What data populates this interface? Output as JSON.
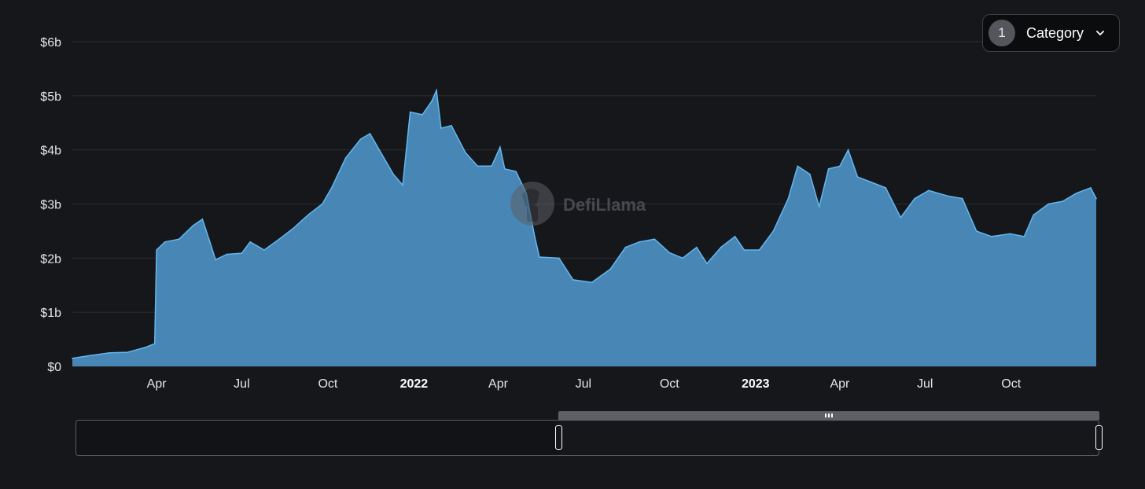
{
  "category_button": {
    "count": "1",
    "label": "Category"
  },
  "watermark": "DefiLlama",
  "colors": {
    "background": "#16171b",
    "area_fill": "#4b8cbe",
    "area_line": "#62b8f0",
    "grid": "#2a2c33"
  },
  "chart_data": {
    "type": "area",
    "title": "",
    "xlabel": "",
    "ylabel": "",
    "y_ticks": [
      "$0",
      "$1b",
      "$2b",
      "$3b",
      "$4b",
      "$5b",
      "$6b"
    ],
    "ylim": [
      0,
      6
    ],
    "y_unit": "billion USD",
    "x_range": [
      "2021-01-01",
      "2023-12-31"
    ],
    "x_ticks": [
      {
        "label": "Apr",
        "date": "2021-04-01",
        "bold": false
      },
      {
        "label": "Jul",
        "date": "2021-07-01",
        "bold": false
      },
      {
        "label": "Oct",
        "date": "2021-10-01",
        "bold": false
      },
      {
        "label": "2022",
        "date": "2022-01-01",
        "bold": true
      },
      {
        "label": "Apr",
        "date": "2022-04-01",
        "bold": false
      },
      {
        "label": "Jul",
        "date": "2022-07-01",
        "bold": false
      },
      {
        "label": "Oct",
        "date": "2022-10-01",
        "bold": false
      },
      {
        "label": "2023",
        "date": "2023-01-01",
        "bold": true
      },
      {
        "label": "Apr",
        "date": "2023-04-01",
        "bold": false
      },
      {
        "label": "Jul",
        "date": "2023-07-01",
        "bold": false
      },
      {
        "label": "Oct",
        "date": "2023-10-01",
        "bold": false
      }
    ],
    "grid": true,
    "legend": "none",
    "series": [
      {
        "points": [
          [
            "2021-01-01",
            0.15
          ],
          [
            "2021-01-20",
            0.2
          ],
          [
            "2021-02-10",
            0.25
          ],
          [
            "2021-03-01",
            0.26
          ],
          [
            "2021-03-20",
            0.35
          ],
          [
            "2021-03-30",
            0.42
          ],
          [
            "2021-04-01",
            2.15
          ],
          [
            "2021-04-10",
            2.3
          ],
          [
            "2021-04-25",
            2.35
          ],
          [
            "2021-05-10",
            2.6
          ],
          [
            "2021-05-20",
            2.72
          ],
          [
            "2021-05-28",
            2.3
          ],
          [
            "2021-06-03",
            1.97
          ],
          [
            "2021-06-15",
            2.07
          ],
          [
            "2021-07-01",
            2.09
          ],
          [
            "2021-07-10",
            2.3
          ],
          [
            "2021-07-25",
            2.15
          ],
          [
            "2021-08-10",
            2.35
          ],
          [
            "2021-08-25",
            2.55
          ],
          [
            "2021-09-10",
            2.8
          ],
          [
            "2021-09-25",
            3.0
          ],
          [
            "2021-10-05",
            3.3
          ],
          [
            "2021-10-20",
            3.85
          ],
          [
            "2021-11-05",
            4.2
          ],
          [
            "2021-11-15",
            4.3
          ],
          [
            "2021-11-25",
            4.0
          ],
          [
            "2021-12-10",
            3.55
          ],
          [
            "2021-12-20",
            3.35
          ],
          [
            "2021-12-28",
            4.7
          ],
          [
            "2022-01-10",
            4.65
          ],
          [
            "2022-01-20",
            4.9
          ],
          [
            "2022-01-25",
            5.1
          ],
          [
            "2022-01-30",
            4.4
          ],
          [
            "2022-02-10",
            4.45
          ],
          [
            "2022-02-25",
            3.95
          ],
          [
            "2022-03-10",
            3.7
          ],
          [
            "2022-03-25",
            3.7
          ],
          [
            "2022-04-03",
            4.05
          ],
          [
            "2022-04-08",
            3.65
          ],
          [
            "2022-04-20",
            3.6
          ],
          [
            "2022-05-01",
            3.2
          ],
          [
            "2022-05-10",
            2.4
          ],
          [
            "2022-05-15",
            2.02
          ],
          [
            "2022-06-05",
            2.0
          ],
          [
            "2022-06-20",
            1.6
          ],
          [
            "2022-07-10",
            1.55
          ],
          [
            "2022-07-30",
            1.8
          ],
          [
            "2022-08-15",
            2.2
          ],
          [
            "2022-08-30",
            2.3
          ],
          [
            "2022-09-15",
            2.35
          ],
          [
            "2022-10-01",
            2.1
          ],
          [
            "2022-10-15",
            2.0
          ],
          [
            "2022-10-30",
            2.2
          ],
          [
            "2022-11-10",
            1.9
          ],
          [
            "2022-11-25",
            2.2
          ],
          [
            "2022-12-10",
            2.4
          ],
          [
            "2022-12-20",
            2.15
          ],
          [
            "2023-01-05",
            2.15
          ],
          [
            "2023-01-20",
            2.5
          ],
          [
            "2023-02-05",
            3.1
          ],
          [
            "2023-02-15",
            3.7
          ],
          [
            "2023-02-28",
            3.55
          ],
          [
            "2023-03-10",
            2.95
          ],
          [
            "2023-03-20",
            3.65
          ],
          [
            "2023-04-01",
            3.7
          ],
          [
            "2023-04-10",
            4.0
          ],
          [
            "2023-04-20",
            3.5
          ],
          [
            "2023-05-05",
            3.4
          ],
          [
            "2023-05-20",
            3.3
          ],
          [
            "2023-06-05",
            2.75
          ],
          [
            "2023-06-20",
            3.1
          ],
          [
            "2023-07-05",
            3.25
          ],
          [
            "2023-07-25",
            3.15
          ],
          [
            "2023-08-10",
            3.1
          ],
          [
            "2023-08-25",
            2.5
          ],
          [
            "2023-09-10",
            2.4
          ],
          [
            "2023-09-30",
            2.45
          ],
          [
            "2023-10-15",
            2.4
          ],
          [
            "2023-10-25",
            2.8
          ],
          [
            "2023-11-10",
            3.0
          ],
          [
            "2023-11-25",
            3.05
          ],
          [
            "2023-12-10",
            3.2
          ],
          [
            "2023-12-25",
            3.3
          ],
          [
            "2023-12-31",
            3.1
          ]
        ]
      }
    ]
  }
}
